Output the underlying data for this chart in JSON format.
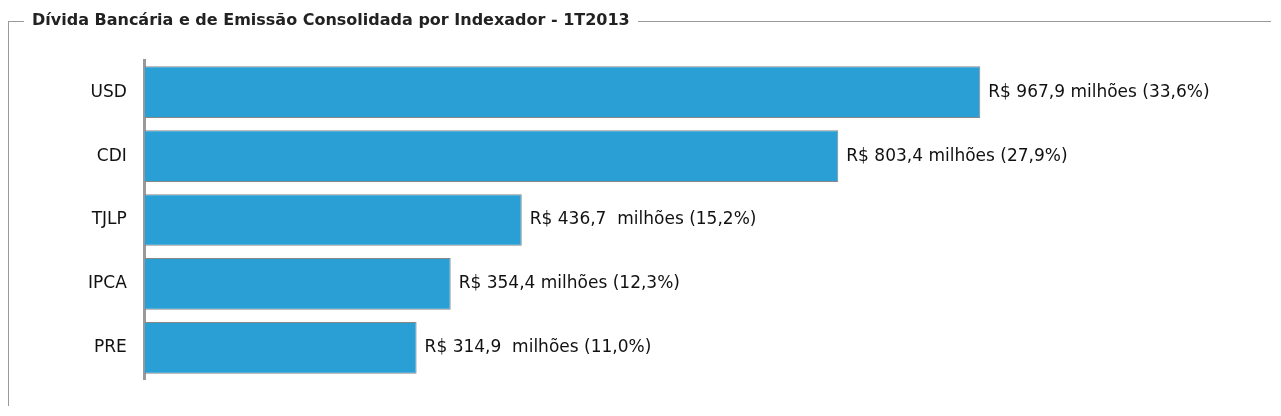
{
  "chart_data": {
    "type": "bar",
    "orientation": "horizontal",
    "title": "Dívida Bancária e de Emissão Consolidada por Indexador - 1T2013",
    "categories": [
      "USD",
      "CDI",
      "TJLP",
      "IPCA",
      "PRE"
    ],
    "values": [
      967.9,
      803.4,
      436.7,
      354.4,
      314.9
    ],
    "value_labels": [
      "R$ 967,9 milhões (33,6%)",
      "R$ 803,4 milhões (27,9%)",
      "R$ 436,7  milhões (15,2%)",
      "R$ 354,4 milhões (12,3%)",
      "R$ 314,9  milhões (11,0%)"
    ],
    "color": "#2a9fd6",
    "grid": false,
    "legend": false,
    "tick_labels": "y"
  }
}
